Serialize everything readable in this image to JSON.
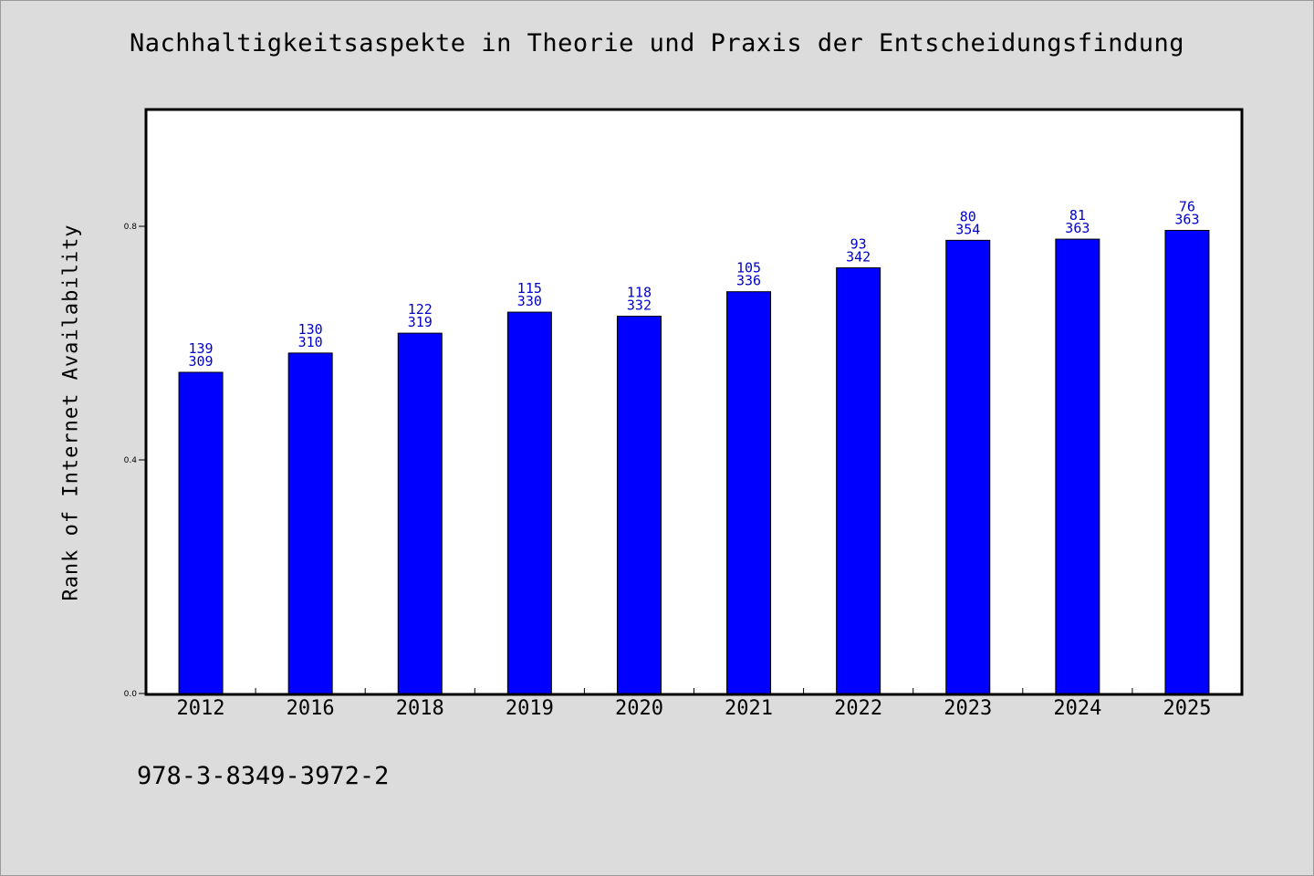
{
  "chart_data": {
    "type": "bar",
    "title": "Nachhaltigkeitsaspekte in Theorie und Praxis der Entscheidungsfindung",
    "xlabel": "",
    "ylabel": "Rank of Internet Availability",
    "categories": [
      "2012",
      "2016",
      "2018",
      "2019",
      "2020",
      "2021",
      "2022",
      "2023",
      "2024",
      "2025"
    ],
    "values": [
      0.55,
      0.583,
      0.617,
      0.653,
      0.646,
      0.688,
      0.729,
      0.776,
      0.778,
      0.793
    ],
    "label_top": [
      "139",
      "130",
      "122",
      "115",
      "118",
      "105",
      "93",
      "80",
      "81",
      "76"
    ],
    "label_bottom": [
      "309",
      "310",
      "319",
      "330",
      "332",
      "336",
      "342",
      "354",
      "363",
      "363"
    ],
    "ylim": [
      0,
      1.0
    ],
    "yticks": [
      0.0,
      0.4,
      0.8
    ],
    "ytick_labels": [
      "0.0",
      "0.4",
      "0.8"
    ],
    "grid": false,
    "bar_color": "#0000ff",
    "label_color": "#0000cc"
  },
  "footer": {
    "isbn": "978-3-8349-3972-2"
  }
}
